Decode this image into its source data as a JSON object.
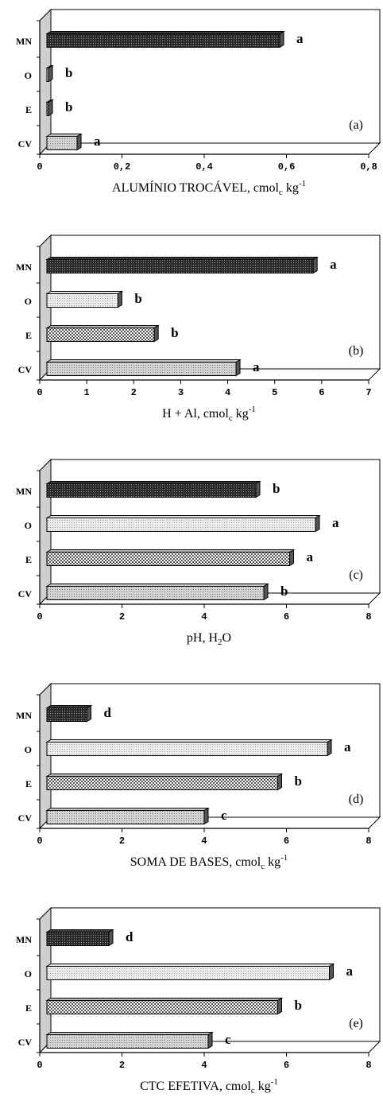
{
  "chart_data": [
    {
      "type": "bar",
      "panel_label": "(a)",
      "categories": [
        "CV",
        "E",
        "O",
        "MN"
      ],
      "values": [
        0.08,
        0.0,
        0.0,
        0.59
      ],
      "data_labels": [
        "a",
        "b",
        "b",
        "a"
      ],
      "xticks": [
        "0",
        "0,2",
        "0,4",
        "0,6",
        "0,8"
      ],
      "xlim": [
        0,
        0.8
      ],
      "xlabel": {
        "main": "ALUMÍNIO TROCÁVEL, cmol",
        "sub": "c",
        "mid": " kg",
        "sup": "-1"
      }
    },
    {
      "type": "bar",
      "panel_label": "(b)",
      "categories": [
        "CV",
        "E",
        "O",
        "MN"
      ],
      "values": [
        4.2,
        2.4,
        1.6,
        5.9
      ],
      "data_labels": [
        "a",
        "b",
        "b",
        "a"
      ],
      "xticks": [
        "0",
        "1",
        "2",
        "3",
        "4",
        "5",
        "6",
        "7"
      ],
      "xlim": [
        0,
        7
      ],
      "xlabel": {
        "main": "H + Al, cmol",
        "sub": "c",
        "mid": " kg",
        "sup": "-1"
      }
    },
    {
      "type": "bar",
      "panel_label": "(c)",
      "categories": [
        "CV",
        "E",
        "O",
        "MN"
      ],
      "values": [
        5.5,
        6.15,
        6.8,
        5.3
      ],
      "data_labels": [
        "b",
        "a",
        "a",
        "b"
      ],
      "xticks": [
        "0",
        "2",
        "4",
        "6",
        "8"
      ],
      "xlim": [
        0,
        8
      ],
      "xlabel": {
        "main": "pH, H",
        "sub": "2",
        "mid": "O",
        "sup": ""
      }
    },
    {
      "type": "bar",
      "panel_label": "(d)",
      "categories": [
        "CV",
        "E",
        "O",
        "MN"
      ],
      "values": [
        4.0,
        5.85,
        7.1,
        1.05
      ],
      "data_labels": [
        "c",
        "b",
        "a",
        "d"
      ],
      "xticks": [
        "0",
        "2",
        "4",
        "6",
        "8"
      ],
      "xlim": [
        0,
        8
      ],
      "xlabel": {
        "main": "SOMA DE BASES, cmol",
        "sub": "c",
        "mid": " kg",
        "sup": "-1"
      }
    },
    {
      "type": "bar",
      "panel_label": "(e)",
      "categories": [
        "CV",
        "E",
        "O",
        "MN"
      ],
      "values": [
        4.1,
        5.85,
        7.15,
        1.6
      ],
      "data_labels": [
        "c",
        "b",
        "a",
        "d"
      ],
      "xticks": [
        "0",
        "2",
        "4",
        "6",
        "8"
      ],
      "xlim": [
        0,
        8
      ],
      "xlabel": {
        "main": "CTC EFETIVA, cmol",
        "sub": "c",
        "mid": " kg",
        "sup": "-1"
      }
    }
  ],
  "colors": {
    "CV": "#c8c8c8",
    "E": "#b4b4b4",
    "O": "#e2e2e2",
    "MN": "#3a3a3a",
    "wall": "#cfcfcf"
  }
}
